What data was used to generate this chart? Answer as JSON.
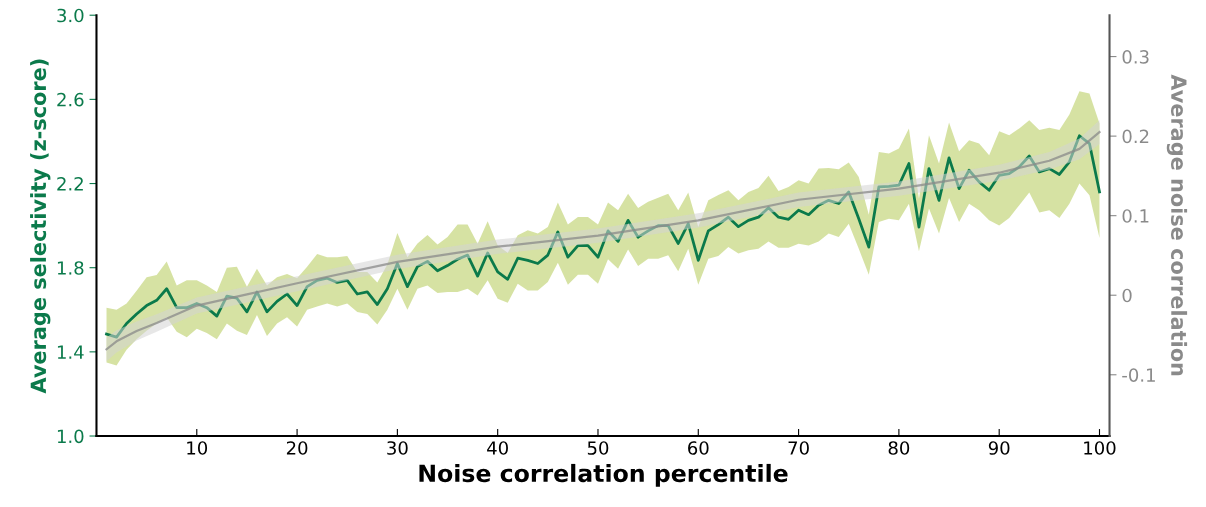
{
  "chart_data": {
    "type": "line",
    "xlabel": "Noise correlation percentile",
    "ylabel": "Average selectivity (z-score)",
    "y2label": "Average noise correlation",
    "xlim": [
      0,
      101
    ],
    "xticks": [
      10,
      20,
      30,
      40,
      50,
      60,
      70,
      80,
      90,
      100
    ],
    "ylim": [
      1.0,
      3.0
    ],
    "yticks": [
      {
        "value": 1.0,
        "label": "1.0"
      },
      1.4,
      1.8,
      2.2,
      2.6,
      {
        "value": 3.0,
        "label": "3.0"
      }
    ],
    "y2lim": [
      -0.177,
      0.352
    ],
    "y2ticks": [
      -0.1,
      0,
      0.1,
      0.2,
      0.3
    ],
    "grid": false,
    "line_style": "solid",
    "marker": "none",
    "series": [
      {
        "color": "#0b7a4b",
        "x": [
          1,
          2,
          3,
          4,
          5,
          6,
          7,
          8,
          9,
          10,
          11,
          12,
          13,
          14,
          15,
          16,
          17,
          18,
          19,
          20,
          21,
          22,
          23,
          24,
          25,
          26,
          27,
          28,
          29,
          30,
          31,
          32,
          33,
          34,
          35,
          36,
          37,
          38,
          39,
          40,
          41,
          42,
          43,
          44,
          45,
          46,
          47,
          48,
          49,
          50,
          51,
          52,
          53,
          54,
          55,
          56,
          57,
          58,
          59,
          60,
          61,
          62,
          63,
          64,
          65,
          66,
          67,
          68,
          69,
          70,
          71,
          72,
          73,
          74,
          75,
          76,
          77,
          78,
          79,
          80,
          81,
          82,
          83,
          84,
          85,
          86,
          87,
          88,
          89,
          90,
          91,
          92,
          93,
          94,
          95,
          96,
          97,
          98,
          99,
          100
        ],
        "values": [
          1.485,
          1.47,
          1.535,
          1.58,
          1.62,
          1.645,
          1.7,
          1.61,
          1.61,
          1.63,
          1.61,
          1.57,
          1.665,
          1.655,
          1.59,
          1.685,
          1.59,
          1.64,
          1.675,
          1.62,
          1.71,
          1.74,
          1.75,
          1.73,
          1.74,
          1.675,
          1.685,
          1.625,
          1.7,
          1.82,
          1.71,
          1.805,
          1.83,
          1.785,
          1.81,
          1.84,
          1.86,
          1.76,
          1.87,
          1.78,
          1.745,
          1.845,
          1.835,
          1.82,
          1.86,
          1.97,
          1.85,
          1.905,
          1.905,
          1.85,
          1.975,
          1.925,
          2.025,
          1.945,
          1.975,
          2.0,
          2.0,
          1.915,
          2.01,
          1.835,
          1.975,
          2.005,
          2.04,
          1.995,
          2.025,
          2.04,
          2.085,
          2.04,
          2.03,
          2.073,
          2.052,
          2.097,
          2.12,
          2.105,
          2.16,
          2.033,
          1.898,
          2.184,
          2.187,
          2.192,
          2.295,
          1.993,
          2.271,
          2.12,
          2.322,
          2.176,
          2.263,
          2.208,
          2.168,
          2.239,
          2.247,
          2.279,
          2.331,
          2.255,
          2.271,
          2.243,
          2.303,
          2.427,
          2.39,
          2.16
        ],
        "lower": [
          1.35,
          1.335,
          1.41,
          1.46,
          1.5,
          1.535,
          1.565,
          1.495,
          1.47,
          1.51,
          1.49,
          1.46,
          1.535,
          1.5,
          1.48,
          1.575,
          1.475,
          1.535,
          1.565,
          1.52,
          1.6,
          1.615,
          1.63,
          1.615,
          1.63,
          1.59,
          1.58,
          1.53,
          1.6,
          1.7,
          1.6,
          1.7,
          1.715,
          1.68,
          1.685,
          1.684,
          1.7,
          1.668,
          1.74,
          1.652,
          1.633,
          1.724,
          1.692,
          1.692,
          1.732,
          1.824,
          1.719,
          1.767,
          1.767,
          1.724,
          1.84,
          1.795,
          1.887,
          1.808,
          1.843,
          1.843,
          1.859,
          1.783,
          1.89,
          1.719,
          1.843,
          1.856,
          1.898,
          1.867,
          1.883,
          1.89,
          1.925,
          1.895,
          1.895,
          1.914,
          1.906,
          1.925,
          1.962,
          1.946,
          2.009,
          1.89,
          1.766,
          2.017,
          2.033,
          2.025,
          2.104,
          1.878,
          2.081,
          1.962,
          2.131,
          2.017,
          2.104,
          2.073,
          2.025,
          2.001,
          2.036,
          2.097,
          2.157,
          2.062,
          2.073,
          2.036,
          2.104,
          2.2,
          2.144,
          1.941
        ],
        "upper": [
          1.61,
          1.6,
          1.63,
          1.69,
          1.755,
          1.765,
          1.83,
          1.715,
          1.74,
          1.74,
          1.715,
          1.685,
          1.8,
          1.805,
          1.71,
          1.795,
          1.715,
          1.755,
          1.77,
          1.75,
          1.805,
          1.865,
          1.85,
          1.85,
          1.855,
          1.78,
          1.78,
          1.73,
          1.815,
          1.965,
          1.85,
          1.915,
          1.955,
          1.91,
          1.946,
          2.005,
          2.005,
          1.914,
          2.021,
          1.906,
          1.871,
          1.954,
          1.978,
          1.962,
          1.994,
          2.11,
          2.005,
          2.041,
          2.041,
          2.005,
          2.11,
          2.073,
          2.152,
          2.084,
          2.113,
          2.132,
          2.152,
          2.073,
          2.157,
          1.994,
          2.121,
          2.145,
          2.168,
          2.121,
          2.16,
          2.179,
          2.237,
          2.164,
          2.184,
          2.216,
          2.2,
          2.271,
          2.274,
          2.268,
          2.3,
          2.231,
          2.052,
          2.35,
          2.343,
          2.366,
          2.462,
          2.128,
          2.43,
          2.295,
          2.49,
          2.354,
          2.406,
          2.39,
          2.335,
          2.449,
          2.43,
          2.462,
          2.501,
          2.454,
          2.465,
          2.454,
          2.528,
          2.639,
          2.628,
          2.485
        ]
      },
      {
        "axis": "y2",
        "color": "#8a8a8a",
        "x": [
          1,
          2,
          4,
          6,
          10,
          15,
          20,
          30,
          40,
          50,
          60,
          70,
          80,
          90,
          95,
          98,
          100
        ],
        "values": [
          -0.068,
          -0.058,
          -0.045,
          -0.035,
          -0.013,
          0.001,
          0.015,
          0.042,
          0.061,
          0.075,
          0.094,
          0.12,
          0.134,
          0.154,
          0.169,
          0.184,
          0.205
        ],
        "lower": [
          -0.083,
          -0.072,
          -0.057,
          -0.046,
          -0.023,
          -0.009,
          0.005,
          0.033,
          0.052,
          0.066,
          0.085,
          0.111,
          0.125,
          0.144,
          0.158,
          0.171,
          0.19
        ],
        "upper": [
          -0.053,
          -0.044,
          -0.033,
          -0.024,
          -0.003,
          0.011,
          0.024,
          0.051,
          0.07,
          0.084,
          0.103,
          0.129,
          0.143,
          0.164,
          0.18,
          0.197,
          0.22
        ]
      }
    ]
  }
}
